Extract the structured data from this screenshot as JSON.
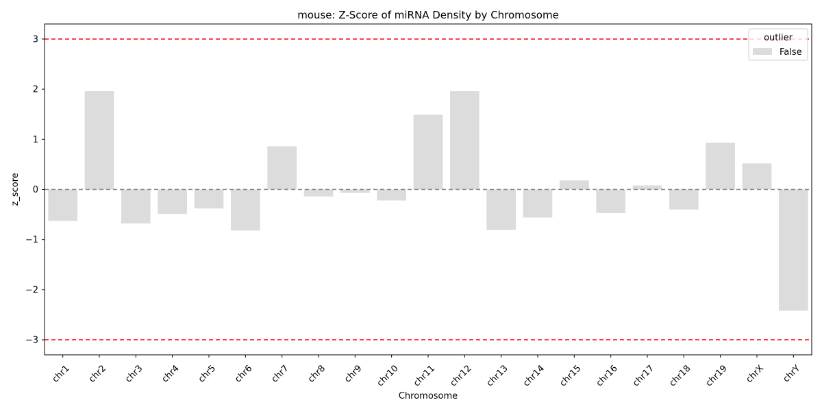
{
  "chart_data": {
    "type": "bar",
    "title": "mouse: Z-Score of miRNA Density by Chromosome",
    "xlabel": "Chromosome",
    "ylabel": "z_score",
    "ylim": [
      -3.3,
      3.3
    ],
    "yticks": [
      -3,
      -2,
      -1,
      0,
      1,
      2,
      3
    ],
    "ytick_labels": [
      "−3",
      "−2",
      "−1",
      "0",
      "1",
      "2",
      "3"
    ],
    "categories": [
      "chr1",
      "chr2",
      "chr3",
      "chr4",
      "chr5",
      "chr6",
      "chr7",
      "chr8",
      "chr9",
      "chr10",
      "chr11",
      "chr12",
      "chr13",
      "chr14",
      "chr15",
      "chr16",
      "chr17",
      "chr18",
      "chr19",
      "chrX",
      "chrY"
    ],
    "values": [
      -0.63,
      1.96,
      -0.68,
      -0.49,
      -0.38,
      -0.82,
      0.86,
      -0.14,
      -0.07,
      -0.22,
      1.49,
      1.96,
      -0.81,
      -0.56,
      0.18,
      -0.47,
      0.08,
      -0.4,
      0.93,
      0.52,
      -2.42
    ],
    "reference_lines": [
      {
        "y": 3,
        "color": "#ff0000",
        "style": "dashed"
      },
      {
        "y": -3,
        "color": "#ff0000",
        "style": "dashed"
      },
      {
        "y": 0,
        "color": "#808080",
        "style": "dashed"
      }
    ],
    "legend": {
      "title": "outlier",
      "placement": "top-right",
      "entries": [
        {
          "label": "False",
          "color": "#dcdcdc"
        }
      ]
    },
    "bar_color": "#dcdcdc",
    "grid": false
  }
}
